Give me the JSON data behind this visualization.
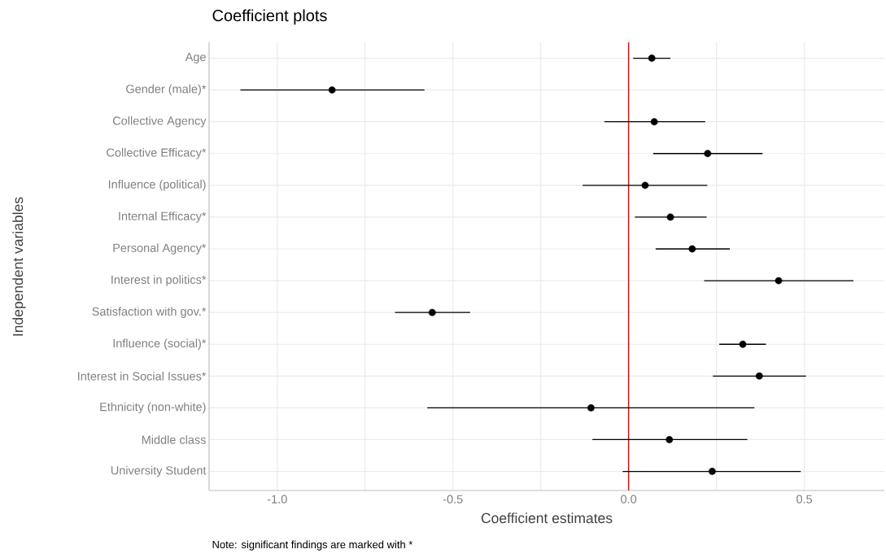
{
  "chart_data": {
    "type": "scatter",
    "orientation": "horizontal",
    "title": "Coefficient plots",
    "xlabel": "Coefficient estimates",
    "ylabel": "Independent variables",
    "categories": [
      "Age",
      "Gender (male)*",
      "Collective Agency",
      "Collective Efficacy*",
      "Influence (political)",
      "Internal Efficacy*",
      "Personal Agency*",
      "Interest in politics*",
      "Satisfaction with gov.*",
      "Influence (social)*",
      "Interest in Social Issues*",
      "Ethnicity (non-white)",
      "Middle class",
      "University Student"
    ],
    "values": [
      0.066,
      -0.844,
      0.073,
      0.225,
      0.047,
      0.119,
      0.181,
      0.427,
      -0.559,
      0.325,
      0.372,
      -0.107,
      0.116,
      0.238
    ],
    "errors": [
      [
        0.013,
        0.119
      ],
      [
        -1.105,
        -0.581
      ],
      [
        -0.069,
        0.218
      ],
      [
        0.07,
        0.381
      ],
      [
        -0.131,
        0.224
      ],
      [
        0.018,
        0.222
      ],
      [
        0.077,
        0.288
      ],
      [
        0.215,
        0.64
      ],
      [
        -0.665,
        -0.451
      ],
      [
        0.258,
        0.391
      ],
      [
        0.24,
        0.505
      ],
      [
        -0.573,
        0.358
      ],
      [
        -0.103,
        0.338
      ],
      [
        -0.017,
        0.49
      ]
    ],
    "color": "#000000",
    "marker": "circle",
    "grid": true,
    "xlim": [
      -1.194,
      0.728
    ],
    "xticks": [
      {
        "value": -1.0,
        "label": "-1.0"
      },
      {
        "value": -0.75,
        "label": null
      },
      {
        "value": -0.5,
        "label": "-0.5"
      },
      {
        "value": -0.25,
        "label": null
      },
      {
        "value": 0.0,
        "label": "0.0"
      },
      {
        "value": 0.25,
        "label": null
      },
      {
        "value": 0.5,
        "label": "0.5"
      }
    ],
    "ref_lines": [
      {
        "axis": "x",
        "value": 0,
        "color": "#ff0000"
      }
    ],
    "annotations": [
      "Note: significant findings are marked with *"
    ]
  }
}
